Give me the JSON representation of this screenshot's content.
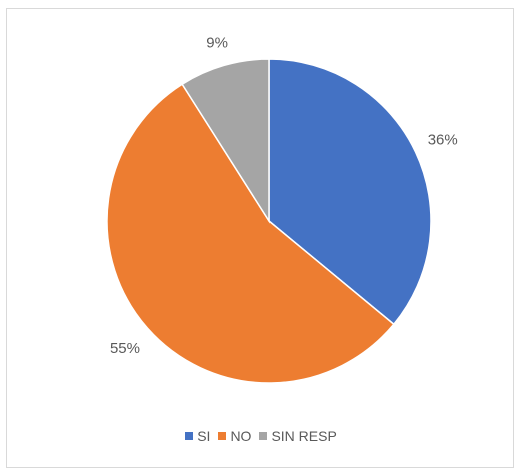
{
  "chart_data": {
    "type": "pie",
    "title": "",
    "categories": [
      "SI",
      "NO",
      "SIN RESP"
    ],
    "values": [
      36,
      55,
      9
    ],
    "value_labels": [
      "36%",
      "55%",
      "9%"
    ],
    "colors": [
      "#4472C4",
      "#ED7D31",
      "#A5A5A5"
    ],
    "start_angle": "12 o'clock, clockwise",
    "legend": {
      "placement": "bottom",
      "entries": [
        {
          "label": "SI",
          "color": "#4472C4"
        },
        {
          "label": "NO",
          "color": "#ED7D31"
        },
        {
          "label": "SIN RESP",
          "color": "#A5A5A5"
        }
      ]
    }
  }
}
